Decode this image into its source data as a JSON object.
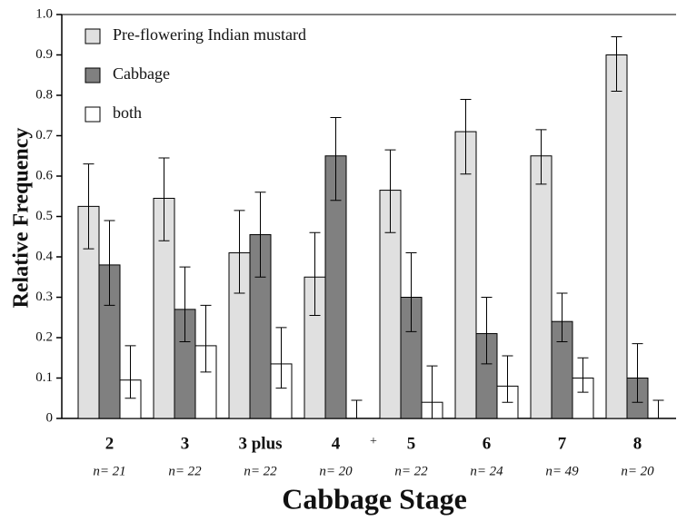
{
  "chart_data": {
    "type": "bar",
    "ylabel": "Relative Frequency",
    "xlabel": "Cabbage Stage",
    "categories": [
      "2",
      "3",
      "3 plus",
      "4",
      "5",
      "6",
      "7",
      "8"
    ],
    "sample_sizes": [
      "n= 21",
      "n= 22",
      "n= 22",
      "n= 20",
      "n= 22",
      "n= 24",
      "n= 49",
      "n= 20"
    ],
    "annotation": "+",
    "series": [
      {
        "name": "Pre-flowering Indian mustard",
        "color": "#e0e0e0",
        "values": [
          0.525,
          0.545,
          0.41,
          0.35,
          0.565,
          0.71,
          0.65,
          0.9
        ],
        "error_minus": [
          0.105,
          0.105,
          0.1,
          0.095,
          0.105,
          0.105,
          0.07,
          0.09
        ],
        "error_plus": [
          0.105,
          0.1,
          0.105,
          0.11,
          0.1,
          0.08,
          0.065,
          0.045
        ]
      },
      {
        "name": "Cabbage",
        "color": "#808080",
        "values": [
          0.38,
          0.27,
          0.455,
          0.65,
          0.3,
          0.21,
          0.24,
          0.1
        ],
        "error_minus": [
          0.1,
          0.08,
          0.105,
          0.11,
          0.085,
          0.075,
          0.05,
          0.06
        ],
        "error_plus": [
          0.11,
          0.105,
          0.105,
          0.095,
          0.11,
          0.09,
          0.07,
          0.085
        ]
      },
      {
        "name": "both",
        "color": "#ffffff",
        "values": [
          0.095,
          0.18,
          0.135,
          0,
          0.04,
          0.08,
          0.1,
          0
        ],
        "error_minus": [
          0.045,
          0.065,
          0.06,
          0,
          0.04,
          0.04,
          0.035,
          0
        ],
        "error_plus": [
          0.085,
          0.1,
          0.09,
          0.045,
          0.09,
          0.075,
          0.05,
          0.045
        ]
      }
    ],
    "ylim": [
      0,
      1
    ],
    "yticks": [
      0,
      0.1,
      0.2,
      0.3,
      0.4,
      0.5,
      0.6,
      0.7,
      0.8,
      0.9,
      {
        "value": 1,
        "label": "1.0"
      }
    ],
    "legend": "upper left"
  }
}
